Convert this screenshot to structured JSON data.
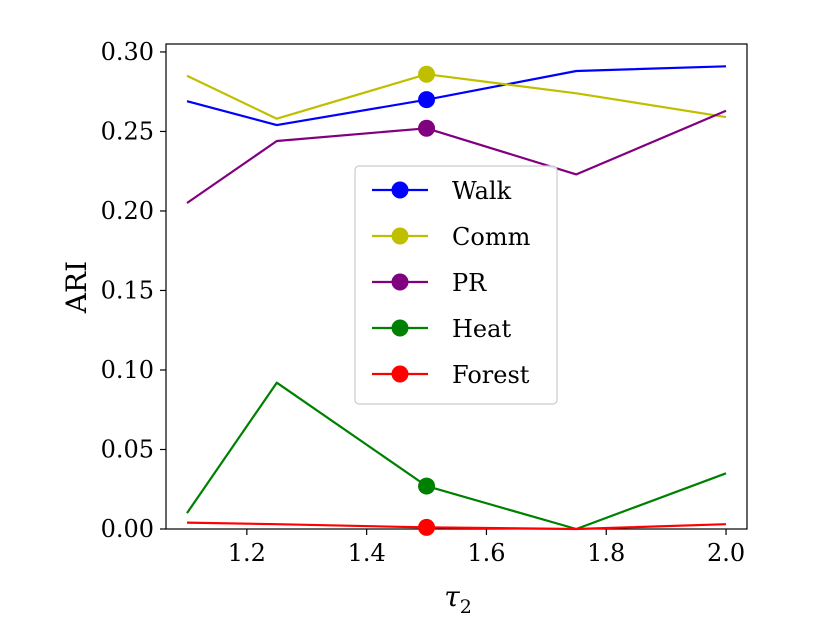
{
  "chart_data": {
    "type": "line",
    "title": "",
    "xlabel": "τ",
    "xlabel_subscript": "2",
    "ylabel": "ARI",
    "xlim": [
      1.065,
      2.035
    ],
    "ylim": [
      0.0,
      0.305
    ],
    "xticks": [
      1.2,
      1.4,
      1.6,
      1.8,
      2.0
    ],
    "xtick_labels": [
      "1.2",
      "1.4",
      "1.6",
      "1.8",
      "2.0"
    ],
    "yticks": [
      0.0,
      0.05,
      0.1,
      0.15,
      0.2,
      0.25,
      0.3
    ],
    "ytick_labels": [
      "0.00",
      "0.05",
      "0.10",
      "0.15",
      "0.20",
      "0.25",
      "0.30"
    ],
    "x": [
      1.1,
      1.25,
      1.5,
      1.75,
      2.0
    ],
    "marker_x": 1.5,
    "series": [
      {
        "name": "Walk",
        "color": "#0000ff",
        "values": [
          0.269,
          0.254,
          0.27,
          0.288,
          0.291
        ]
      },
      {
        "name": "Comm",
        "color": "#bfbf00",
        "values": [
          0.285,
          0.258,
          0.286,
          0.274,
          0.259
        ]
      },
      {
        "name": "PR",
        "color": "#800080",
        "values": [
          0.205,
          0.244,
          0.252,
          0.223,
          0.263
        ]
      },
      {
        "name": "Heat",
        "color": "#008000",
        "values": [
          0.01,
          0.092,
          0.027,
          0.0,
          0.035
        ]
      },
      {
        "name": "Forest",
        "color": "#ff0000",
        "values": [
          0.004,
          0.003,
          0.001,
          0.0,
          0.003
        ]
      }
    ],
    "legend_position": "center",
    "grid": false
  }
}
